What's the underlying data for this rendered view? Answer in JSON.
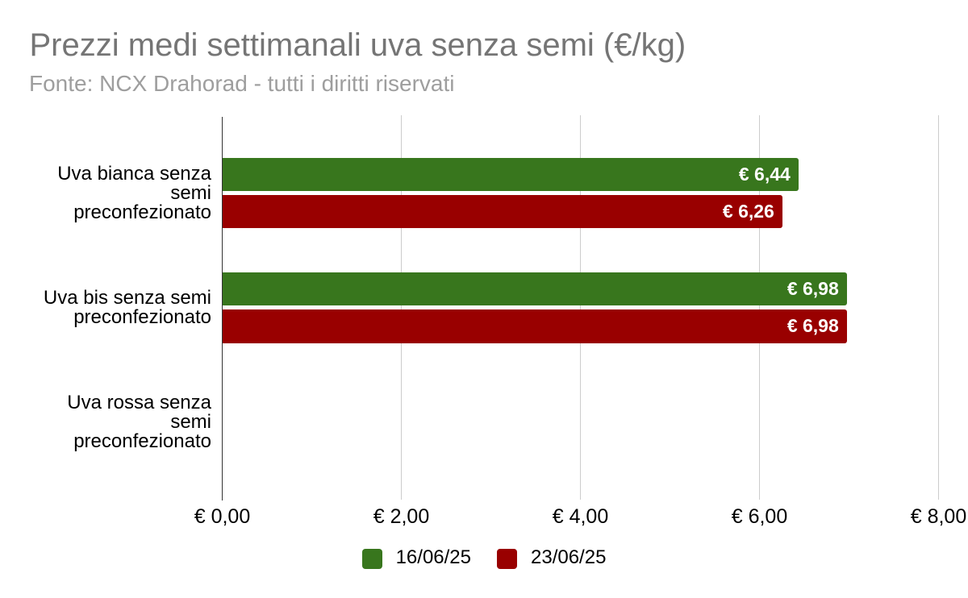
{
  "chart_data": {
    "type": "bar",
    "orientation": "horizontal",
    "title": "Prezzi medi settimanali uva senza semi (€/kg)",
    "subtitle": "Fonte: NCX Drahorad - tutti i diritti riservati",
    "categories": [
      {
        "label": "Uva bianca senza semi preconfezionato",
        "lines": [
          "Uva bianca senza",
          "semi",
          "preconfezionato"
        ]
      },
      {
        "label": "Uva bis senza semi preconfezionato",
        "lines": [
          "Uva bis senza semi",
          "preconfezionato"
        ]
      },
      {
        "label": "Uva rossa senza semi preconfezionato",
        "lines": [
          "Uva rossa senza",
          "semi",
          "preconfezionato"
        ]
      }
    ],
    "series": [
      {
        "name": "16/06/25",
        "color": "#38761d",
        "values": [
          6.44,
          6.98,
          null
        ],
        "value_labels": [
          "€ 6,44",
          "€ 6,98",
          ""
        ]
      },
      {
        "name": "23/06/25",
        "color": "#990000",
        "values": [
          6.26,
          6.98,
          null
        ],
        "value_labels": [
          "€ 6,26",
          "€ 6,98",
          ""
        ]
      }
    ],
    "x_axis": {
      "min": 0,
      "max": 8,
      "ticks": [
        {
          "value": 0,
          "label": "€ 0,00"
        },
        {
          "value": 2,
          "label": "€ 2,00"
        },
        {
          "value": 4,
          "label": "€ 4,00"
        },
        {
          "value": 6,
          "label": "€ 6,00"
        },
        {
          "value": 8,
          "label": "€ 8,00"
        }
      ]
    },
    "grid": true,
    "legend_position": "bottom",
    "colors": {
      "title_text": "#757575",
      "subtitle_text": "#9e9e9e",
      "axis_text": "#000000",
      "category_text": "#000000",
      "value_label_text": "#ffffff",
      "gridline": "#cccccc",
      "baseline": "#333333",
      "background": "#ffffff"
    }
  }
}
